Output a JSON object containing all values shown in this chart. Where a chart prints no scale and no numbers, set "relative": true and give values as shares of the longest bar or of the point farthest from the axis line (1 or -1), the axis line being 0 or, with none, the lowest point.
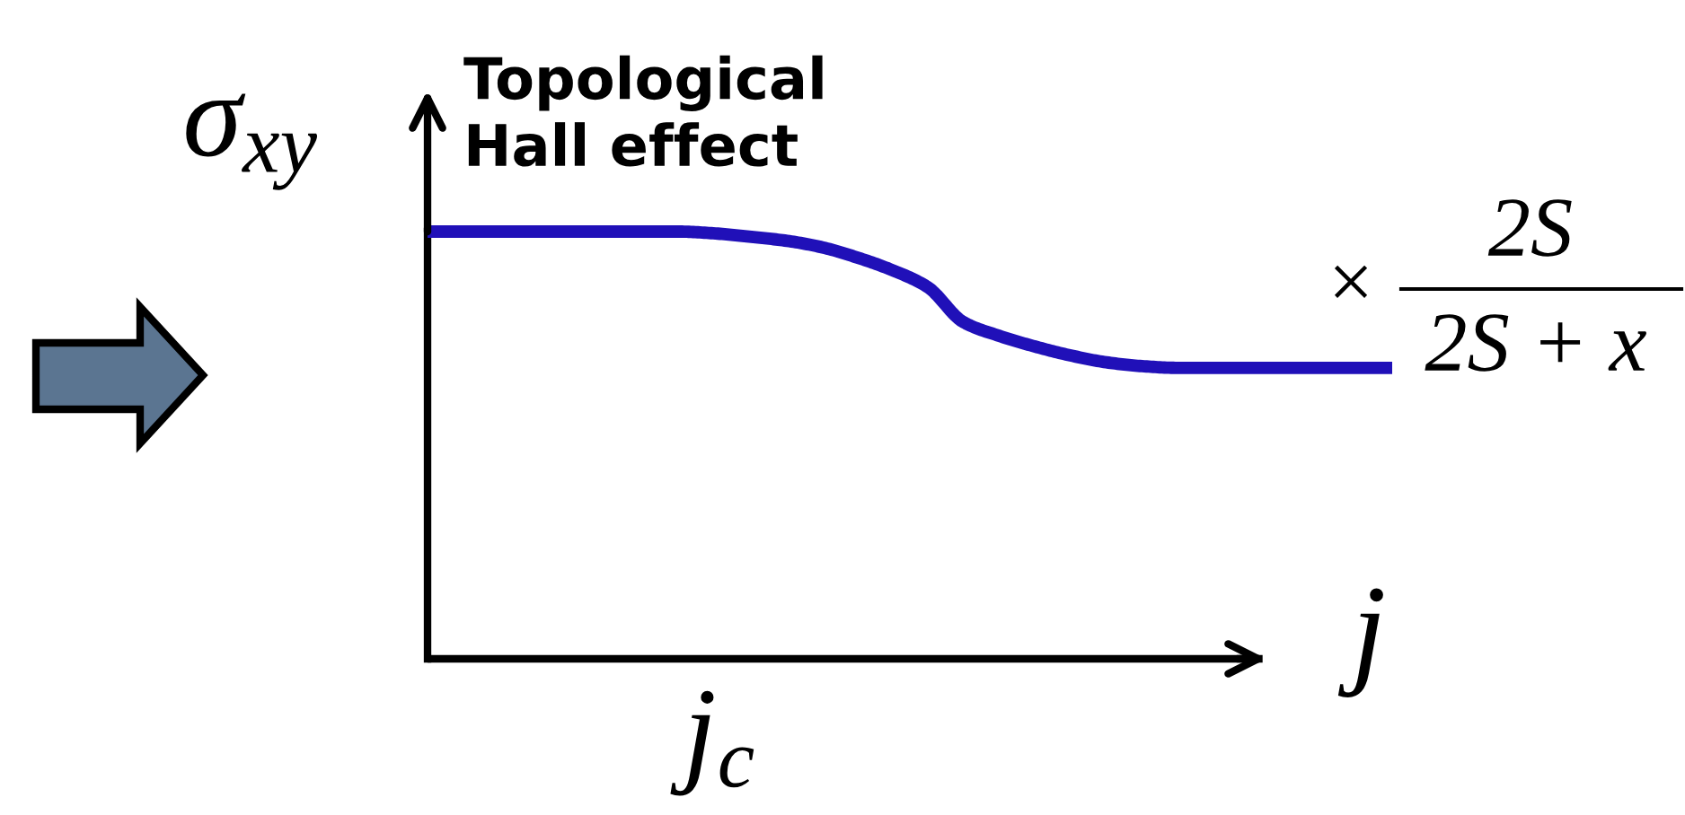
{
  "chart_data": {
    "type": "line",
    "relative": true,
    "title": "Topological\nHall effect",
    "xlabel": "j",
    "ylabel": "σ$_{xy}$",
    "categories": [
      null,
      null,
      null,
      null,
      null,
      null,
      null,
      null,
      null,
      null,
      null,
      null,
      null,
      null,
      null,
      null,
      null,
      null,
      null,
      null,
      null,
      null,
      null,
      null,
      null,
      null,
      null,
      null
    ],
    "series": [
      {
        "color": "#2010b8",
        "values": [
          1,
          1,
          1,
          1,
          1,
          1,
          1,
          1,
          0.996,
          0.988,
          0.979,
          0.964,
          0.94,
          0.91,
          0.87,
          0.788,
          0.756,
          0.731,
          0.71,
          0.694,
          0.685,
          0.681,
          0.681,
          0.681,
          0.681,
          0.681,
          0.681,
          0.681
        ]
      }
    ],
    "annotations": [
      "×",
      "2S",
      "2S + x",
      "j$_{c}$"
    ]
  }
}
